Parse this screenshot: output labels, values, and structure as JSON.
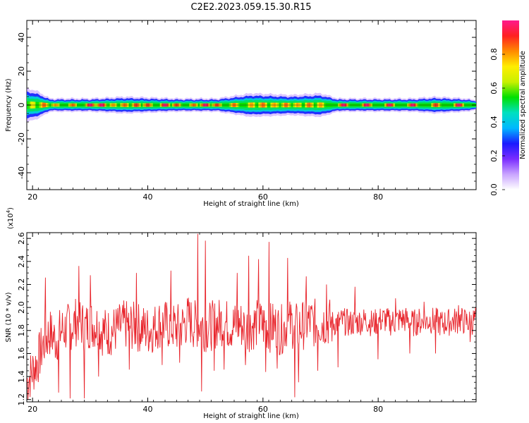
{
  "title": "C2E2.2023.059.15.30.R15",
  "colors": {
    "snr_line": "#e8232a",
    "colormap": [
      "#ffffff",
      "#c9a4ff",
      "#7a2cff",
      "#1a1aff",
      "#00b8ff",
      "#00e0c0",
      "#00e000",
      "#c8f000",
      "#ffee00",
      "#ff8a00",
      "#ff2020",
      "#ff1a8c"
    ]
  },
  "chart_data": [
    {
      "type": "heatmap",
      "xlabel": "Height of straight line (km)",
      "ylabel": "Frequency (Hz)",
      "xlim": [
        19,
        97
      ],
      "ylim": [
        -50,
        50
      ],
      "xticks": [
        20,
        40,
        60,
        80
      ],
      "yticks": [
        40,
        20,
        0,
        -20,
        -40
      ],
      "colorbar": {
        "label": "Normalized spectral amplitude",
        "range": [
          0,
          1
        ],
        "ticks": [
          0.0,
          0.2,
          0.4,
          0.6,
          0.8
        ]
      },
      "ridge": {
        "frequency": 0,
        "x_start": 19,
        "x_end": 97,
        "width_points": [
          [
            19,
            10
          ],
          [
            21,
            8
          ],
          [
            23,
            4
          ],
          [
            30,
            4
          ],
          [
            36,
            5
          ],
          [
            45,
            4
          ],
          [
            52,
            4
          ],
          [
            58,
            7
          ],
          [
            65,
            6
          ],
          [
            70,
            7
          ],
          [
            73,
            4
          ],
          [
            86,
            4
          ],
          [
            90,
            5
          ],
          [
            95,
            4
          ],
          [
            97,
            3
          ]
        ],
        "peaks": [
          [
            20,
            0.7
          ],
          [
            22,
            0.85
          ],
          [
            24,
            0.8
          ],
          [
            27,
            0.85
          ],
          [
            30,
            1.0
          ],
          [
            32,
            1.0
          ],
          [
            34,
            0.8
          ],
          [
            36,
            0.85
          ],
          [
            38,
            0.9
          ],
          [
            40,
            0.9
          ],
          [
            43,
            1.0
          ],
          [
            45,
            0.9
          ],
          [
            48,
            0.85
          ],
          [
            50,
            1.0
          ],
          [
            52,
            0.9
          ],
          [
            55,
            0.85
          ],
          [
            58,
            0.8
          ],
          [
            60,
            0.85
          ],
          [
            62,
            0.8
          ],
          [
            64,
            0.85
          ],
          [
            66,
            0.8
          ],
          [
            68,
            0.85
          ],
          [
            70,
            0.8
          ],
          [
            74,
            1.0
          ],
          [
            78,
            1.0
          ],
          [
            82,
            1.0
          ],
          [
            86,
            1.0
          ],
          [
            90,
            0.9
          ],
          [
            94,
            1.0
          ]
        ]
      }
    },
    {
      "type": "line",
      "xlabel": "Height of straight line (km)",
      "ylabel": "SNR (10 * v/v)",
      "yscale_label": "(x10",
      "yscale_exponent": "4",
      "yscale_close": ")",
      "xlim": [
        19,
        97
      ],
      "ylim": [
        1.18,
        2.65
      ],
      "xticks": [
        20,
        40,
        60,
        80
      ],
      "yticks": [
        1.2,
        1.4,
        1.6,
        1.8,
        2.0,
        2.2,
        2.4,
        2.6
      ],
      "series": [
        {
          "x": [
            19,
            20,
            21,
            22,
            23,
            24,
            25,
            26,
            27,
            28,
            29,
            30,
            31,
            32,
            33,
            34,
            35,
            36,
            37,
            38,
            39,
            40,
            41,
            42,
            43,
            44,
            45,
            46,
            47,
            48,
            49,
            50,
            51,
            52,
            53,
            54,
            55,
            56,
            57,
            58,
            59,
            60,
            61,
            62,
            63,
            64,
            65,
            66,
            67,
            68,
            69,
            70,
            71,
            72,
            73,
            74,
            75,
            76,
            77,
            78,
            79,
            80,
            81,
            82,
            83,
            84,
            85,
            86,
            87,
            88,
            89,
            90,
            91,
            92,
            93,
            94,
            95,
            96,
            97
          ],
          "y": [
            1.35,
            1.45,
            1.55,
            1.7,
            1.78,
            1.72,
            1.8,
            1.82,
            1.85,
            1.9,
            1.82,
            1.86,
            1.85,
            1.8,
            1.78,
            1.8,
            1.82,
            1.85,
            1.84,
            1.83,
            1.82,
            1.8,
            1.82,
            1.86,
            1.85,
            1.84,
            1.82,
            1.84,
            1.9,
            1.85,
            1.86,
            1.83,
            1.84,
            1.86,
            1.88,
            1.85,
            1.84,
            1.86,
            1.82,
            1.84,
            1.86,
            1.85,
            1.82,
            1.84,
            1.8,
            1.84,
            1.86,
            1.82,
            1.85,
            1.88,
            1.86,
            1.87,
            1.88,
            1.86,
            1.87,
            1.88,
            1.86,
            1.87,
            1.88,
            1.89,
            1.86,
            1.88,
            1.9,
            1.87,
            1.88,
            1.9,
            1.89,
            1.86,
            1.88,
            1.87,
            1.89,
            1.88,
            1.86,
            1.87,
            1.88,
            1.89,
            1.88,
            1.87,
            1.9
          ],
          "peaks": [
            [
              22.2,
              2.26
            ],
            [
              24.5,
              1.26
            ],
            [
              26.5,
              1.21
            ],
            [
              28,
              2.36
            ],
            [
              29,
              1.21
            ],
            [
              30,
              2.28
            ],
            [
              31.5,
              1.4
            ],
            [
              36.8,
              1.46
            ],
            [
              38,
              2.3
            ],
            [
              42.5,
              1.5
            ],
            [
              44,
              2.32
            ],
            [
              45.5,
              1.52
            ],
            [
              48.7,
              2.64
            ],
            [
              49.3,
              1.27
            ],
            [
              50,
              2.58
            ],
            [
              51.5,
              1.45
            ],
            [
              53.2,
              1.46
            ],
            [
              55.5,
              2.3
            ],
            [
              57,
              1.5
            ],
            [
              57.5,
              2.45
            ],
            [
              59.2,
              2.42
            ],
            [
              60.5,
              1.44
            ],
            [
              61,
              2.57
            ],
            [
              62.5,
              1.47
            ],
            [
              64.3,
              2.43
            ],
            [
              65.5,
              1.22
            ],
            [
              66.2,
              1.35
            ],
            [
              67.5,
              2.27
            ],
            [
              69.5,
              1.45
            ],
            [
              71,
              2.2
            ],
            [
              73,
              1.48
            ],
            [
              76,
              2.18
            ],
            [
              80,
              1.55
            ],
            [
              83,
              2.08
            ],
            [
              85.5,
              1.6
            ],
            [
              88,
              2.05
            ],
            [
              90,
              1.6
            ],
            [
              94,
              2.02
            ],
            [
              96,
              1.7
            ]
          ],
          "noise_seed": 7,
          "noise_amplitude": 0.22
        }
      ]
    }
  ]
}
